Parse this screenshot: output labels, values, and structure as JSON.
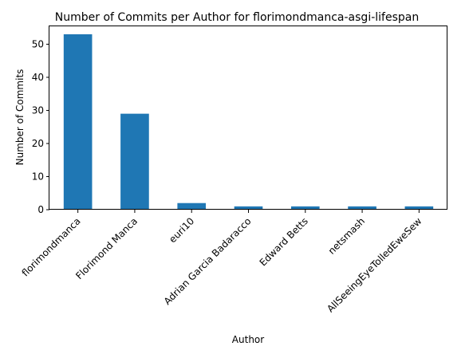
{
  "chart_data": {
    "type": "bar",
    "title": "Number of Commits per Author for florimondmanca-asgi-lifespan",
    "xlabel": "Author",
    "ylabel": "Number of Commits",
    "categories": [
      "florimondmanca",
      "Florimond Manca",
      "euri10",
      "Adrian Garcia Badaracco",
      "Edward Betts",
      "netsmash",
      "AllSeeingEyeTolledEweSew"
    ],
    "values": [
      53,
      29,
      2,
      1,
      1,
      1,
      1
    ],
    "ylim": [
      0,
      55.65
    ],
    "yticks": [
      0,
      10,
      20,
      30,
      40,
      50
    ],
    "grid": false,
    "legend": "none",
    "bar_color": "#1f77b4"
  }
}
